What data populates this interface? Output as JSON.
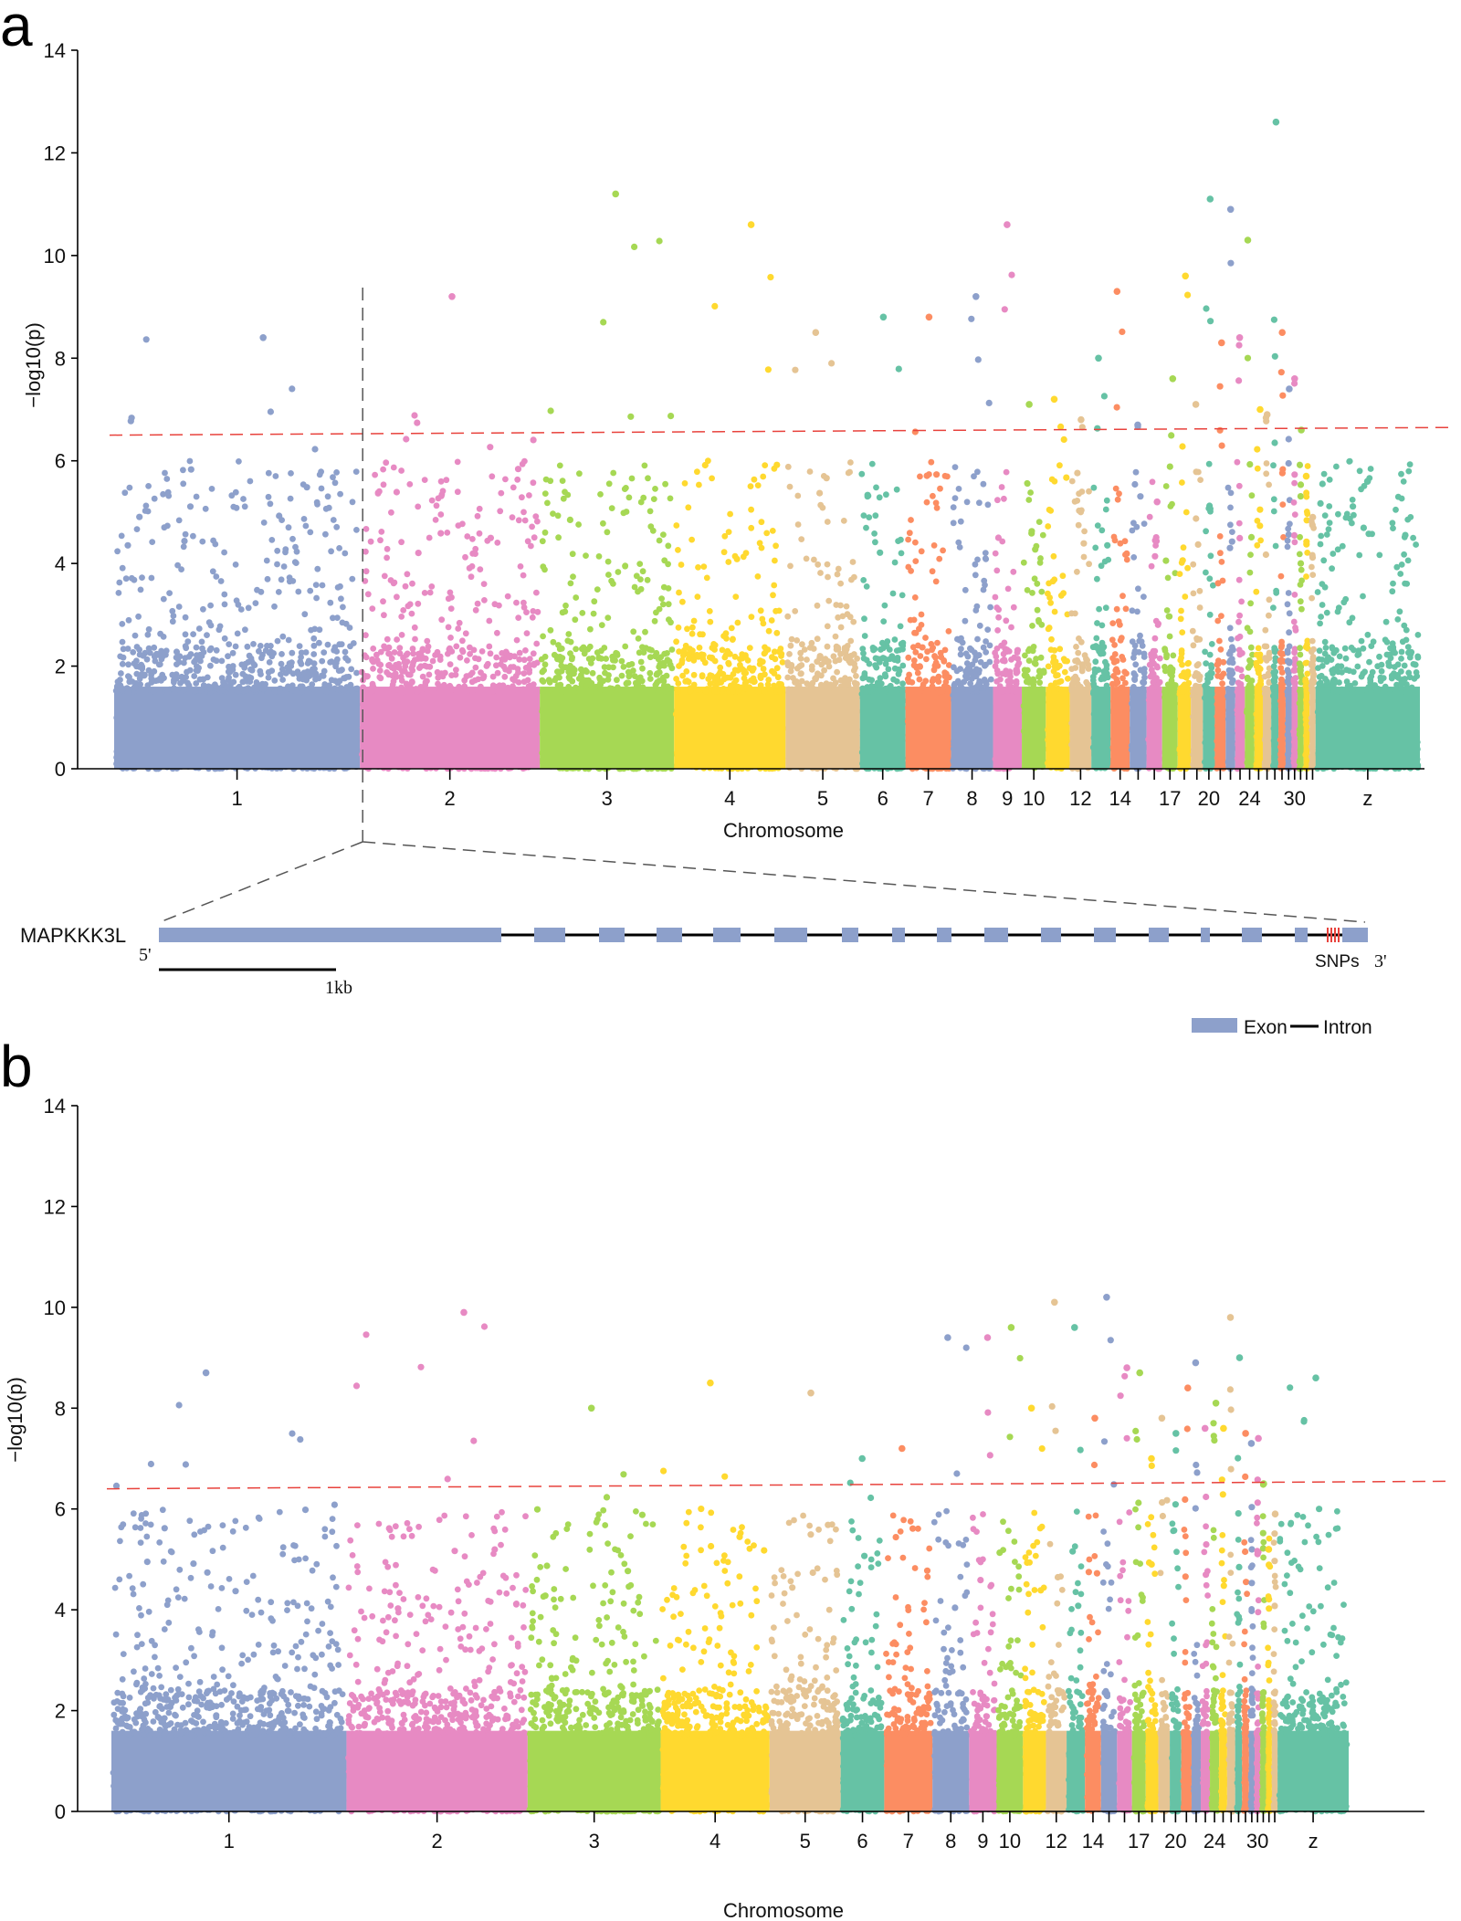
{
  "chart_data": [
    {
      "panel": "a",
      "type": "scatter",
      "subtype": "manhattan",
      "xlabel": "Chromosome",
      "ylabel": "−log10(p)",
      "ylim": [
        0,
        14
      ],
      "yticks": [
        0,
        2,
        4,
        6,
        8,
        10,
        12,
        14
      ],
      "threshold_line": {
        "from": 6.5,
        "to": 6.65,
        "color": "#e8423c",
        "style": "dashed"
      },
      "chromosomes": [
        "1",
        "2",
        "3",
        "4",
        "5",
        "6",
        "7",
        "8",
        "9",
        "10",
        "11",
        "12",
        "13",
        "14",
        "15",
        "16",
        "17",
        "18",
        "19",
        "20",
        "21",
        "22",
        "23",
        "24",
        "25",
        "26",
        "27",
        "28",
        "29",
        "30",
        "31",
        "32",
        "33",
        "z"
      ],
      "tick_labels": [
        "1",
        "2",
        "3",
        "4",
        "5",
        "6",
        "7",
        "8",
        "9",
        "10",
        "",
        "12",
        "",
        "14",
        "",
        "",
        "17",
        "",
        "",
        "20",
        "",
        "",
        "",
        "24",
        "",
        "",
        "",
        "",
        "",
        "30",
        "",
        "",
        "",
        "z"
      ],
      "chromosome_max": [
        8.4,
        9.2,
        11.2,
        10.6,
        8.5,
        8.8,
        8.8,
        9.2,
        10.6,
        7.1,
        7.2,
        6.8,
        8.0,
        9.3,
        6.7,
        5.2,
        7.6,
        9.6,
        7.1,
        11.1,
        8.3,
        10.9,
        8.4,
        10.3,
        7.0,
        6.9,
        12.6,
        8.5,
        7.4,
        7.6,
        6.6,
        5.7,
        4.9,
        5.6
      ],
      "point_count_note": "approximate scatter density per chromosome",
      "annotation": {
        "gene": "MAPKKK3L",
        "five_prime": "5'",
        "three_prime": "3'",
        "snps_label": "SNPs",
        "scale_label": "1kb",
        "legend_exon": "Exon",
        "legend_intron": "Intron",
        "zoom_chromosome_boundary": "1|2",
        "exon_color": "#8da0cb",
        "snp_color": "#e8423c"
      }
    },
    {
      "panel": "b",
      "type": "scatter",
      "subtype": "manhattan",
      "xlabel": "Chromosome",
      "ylabel": "−log10(p)",
      "ylim": [
        0,
        14
      ],
      "yticks": [
        0,
        2,
        4,
        6,
        8,
        10,
        12,
        14
      ],
      "threshold_line": {
        "from": 6.4,
        "to": 6.55,
        "color": "#e8423c",
        "style": "dashed"
      },
      "chromosomes": [
        "1",
        "2",
        "3",
        "4",
        "5",
        "6",
        "7",
        "8",
        "9",
        "10",
        "11",
        "12",
        "13",
        "14",
        "15",
        "16",
        "17",
        "18",
        "19",
        "20",
        "21",
        "22",
        "23",
        "24",
        "25",
        "26",
        "27",
        "28",
        "29",
        "30",
        "31",
        "32",
        "33",
        "z"
      ],
      "tick_labels": [
        "1",
        "2",
        "3",
        "4",
        "5",
        "6",
        "7",
        "8",
        "9",
        "10",
        "",
        "12",
        "",
        "14",
        "",
        "",
        "17",
        "",
        "",
        "20",
        "",
        "",
        "",
        "24",
        "",
        "",
        "",
        "",
        "",
        "30",
        "",
        "",
        "",
        "z"
      ],
      "chromosome_max": [
        8.7,
        9.9,
        8.0,
        8.5,
        8.3,
        7.0,
        7.2,
        9.4,
        9.4,
        9.6,
        8.0,
        10.1,
        9.6,
        7.8,
        10.2,
        8.8,
        8.7,
        7.0,
        7.8,
        7.5,
        8.4,
        8.9,
        7.6,
        8.1,
        7.6,
        9.8,
        9.0,
        7.5,
        7.3,
        7.4,
        6.5,
        5.2,
        5.9,
        8.6
      ]
    }
  ],
  "panels": {
    "a": {
      "letter": "a"
    },
    "b": {
      "letter": "b"
    }
  },
  "palette": [
    "#8da0cb",
    "#e78ac3",
    "#a6d854",
    "#ffd92f",
    "#e5c494",
    "#66c2a5",
    "#fc8d62"
  ]
}
